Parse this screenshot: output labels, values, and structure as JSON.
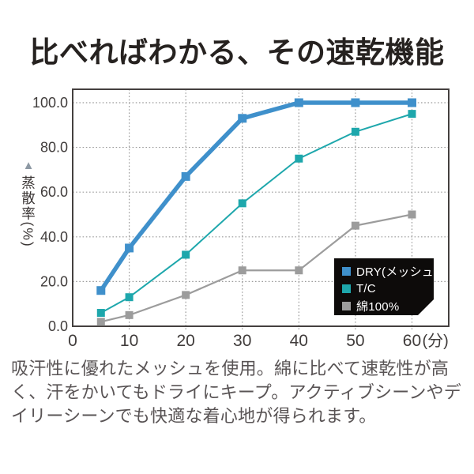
{
  "page": {
    "title": "比べればわかる、その速乾機能",
    "description": "吸汗性に優れたメッシュを使用。綿に比べて速乾性が高く、汗をかいてもドライにキープ。アクティブシーンやデイリーシーンでも快適な着心地が得られます。"
  },
  "chart_data": {
    "type": "line",
    "title": "",
    "ylabel": "蒸散率(%)",
    "ylabel_marker": "▲",
    "xlabel": "",
    "x_unit": "(分)",
    "x": [
      5,
      10,
      20,
      30,
      40,
      50,
      60
    ],
    "series": [
      {
        "name": "DRY(メッシュ)",
        "values": [
          16,
          35,
          67,
          93,
          100,
          100,
          100
        ],
        "color": "#3f90cb",
        "line_width": 5.5,
        "marker_size": 11
      },
      {
        "name": "T/C",
        "values": [
          6,
          13,
          32,
          55,
          75,
          87,
          95
        ],
        "color": "#1ea7ac",
        "line_width": 2,
        "marker_size": 10
      },
      {
        "name": "綿100%",
        "values": [
          2,
          5,
          14,
          25,
          25,
          45,
          50
        ],
        "color": "#9c9c9c",
        "line_width": 2.2,
        "marker_size": 10
      }
    ],
    "x_ticks": [
      {
        "v": 0,
        "label": "0"
      },
      {
        "v": 10,
        "label": "10"
      },
      {
        "v": 20,
        "label": "20"
      },
      {
        "v": 30,
        "label": "30"
      },
      {
        "v": 40,
        "label": "40"
      },
      {
        "v": 50,
        "label": "50"
      },
      {
        "v": 60,
        "label": "60",
        "suffix": "(分)"
      }
    ],
    "y_ticks": [
      {
        "v": 0,
        "label": "0.0"
      },
      {
        "v": 20,
        "label": "20.0"
      },
      {
        "v": 40,
        "label": "40.0"
      },
      {
        "v": 60,
        "label": "60.0"
      },
      {
        "v": 80,
        "label": "80.0"
      },
      {
        "v": 100,
        "label": "100.0"
      }
    ],
    "xlim": [
      0,
      66.5
    ],
    "ylim": [
      0,
      106
    ],
    "grid": true,
    "grid_style": "dotted",
    "legend_position": "lower right",
    "colors": {
      "grid": "#9a9a9a",
      "frame": "#44403f",
      "axis_text": "#403c3b",
      "legend_bg": "#0d0b0a",
      "legend_text": "#ffffff",
      "ylabel_marker": "#8d99a4"
    }
  }
}
